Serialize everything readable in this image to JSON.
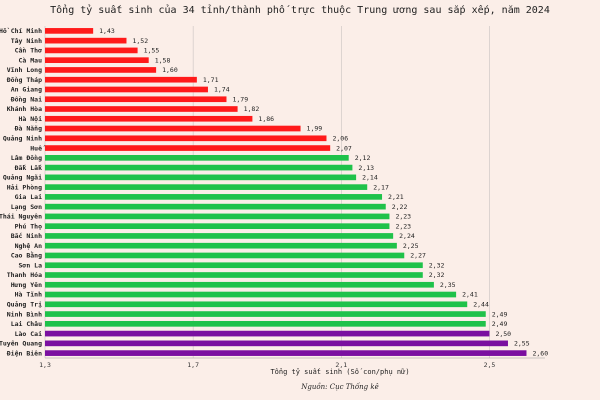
{
  "chart_data": {
    "type": "bar",
    "orientation": "horizontal",
    "title": "Tổng tỷ suất sinh của 34 tỉnh/thành phố trực thuộc Trung ương sau sắp xếp, năm 2024",
    "xlabel": "Tổng tỷ suất sinh (Số con/phụ nữ)",
    "source": "Nguồn: Cục Thống kê",
    "xlim": [
      1.3,
      2.65
    ],
    "xticks": [
      {
        "value": 1.3,
        "label": "1,3"
      },
      {
        "value": 1.7,
        "label": "1,7"
      },
      {
        "value": 2.1,
        "label": "2,1"
      },
      {
        "value": 2.5,
        "label": "2,5"
      }
    ],
    "grid": true,
    "colors": {
      "red": "#ff1a1a",
      "green": "#1fc24a",
      "purple": "#7a0fa0",
      "grid": "#c9c2c0"
    },
    "bars": [
      {
        "category": "Hồ Chí Minh",
        "value": 1.43,
        "label": "1,43",
        "color": "red"
      },
      {
        "category": "Tây Ninh",
        "value": 1.52,
        "label": "1,52",
        "color": "red"
      },
      {
        "category": "Cần Thơ",
        "value": 1.55,
        "label": "1,55",
        "color": "red"
      },
      {
        "category": "Cà Mau",
        "value": 1.58,
        "label": "1,58",
        "color": "red"
      },
      {
        "category": "Vĩnh Long",
        "value": 1.6,
        "label": "1,60",
        "color": "red"
      },
      {
        "category": "Đồng Tháp",
        "value": 1.71,
        "label": "1,71",
        "color": "red"
      },
      {
        "category": "An Giang",
        "value": 1.74,
        "label": "1,74",
        "color": "red"
      },
      {
        "category": "Đồng Nai",
        "value": 1.79,
        "label": "1,79",
        "color": "red"
      },
      {
        "category": "Khánh Hòa",
        "value": 1.82,
        "label": "1,82",
        "color": "red"
      },
      {
        "category": "Hà Nội",
        "value": 1.86,
        "label": "1,86",
        "color": "red"
      },
      {
        "category": "Đà Nẵng",
        "value": 1.99,
        "label": "1,99",
        "color": "red"
      },
      {
        "category": "Quảng Ninh",
        "value": 2.06,
        "label": "2,06",
        "color": "red"
      },
      {
        "category": "Huế",
        "value": 2.07,
        "label": "2,07",
        "color": "red"
      },
      {
        "category": "Lâm Đồng",
        "value": 2.12,
        "label": "2,12",
        "color": "green"
      },
      {
        "category": "Đắk Lắk",
        "value": 2.13,
        "label": "2,13",
        "color": "green"
      },
      {
        "category": "Quảng Ngãi",
        "value": 2.14,
        "label": "2,14",
        "color": "green"
      },
      {
        "category": "Hải Phòng",
        "value": 2.17,
        "label": "2,17",
        "color": "green"
      },
      {
        "category": "Gia Lai",
        "value": 2.21,
        "label": "2,21",
        "color": "green"
      },
      {
        "category": "Lạng Sơn",
        "value": 2.22,
        "label": "2,22",
        "color": "green"
      },
      {
        "category": "Thái Nguyên",
        "value": 2.23,
        "label": "2,23",
        "color": "green"
      },
      {
        "category": "Phú Thọ",
        "value": 2.23,
        "label": "2,23",
        "color": "green"
      },
      {
        "category": "Bắc Ninh",
        "value": 2.24,
        "label": "2,24",
        "color": "green"
      },
      {
        "category": "Nghệ An",
        "value": 2.25,
        "label": "2,25",
        "color": "green"
      },
      {
        "category": "Cao Bằng",
        "value": 2.27,
        "label": "2,27",
        "color": "green"
      },
      {
        "category": "Sơn La",
        "value": 2.32,
        "label": "2,32",
        "color": "green"
      },
      {
        "category": "Thanh Hóa",
        "value": 2.32,
        "label": "2,32",
        "color": "green"
      },
      {
        "category": "Hưng Yên",
        "value": 2.35,
        "label": "2,35",
        "color": "green"
      },
      {
        "category": "Hà Tĩnh",
        "value": 2.41,
        "label": "2,41",
        "color": "green"
      },
      {
        "category": "Quảng Trị",
        "value": 2.44,
        "label": "2,44",
        "color": "green"
      },
      {
        "category": "Ninh Bình",
        "value": 2.49,
        "label": "2,49",
        "color": "green"
      },
      {
        "category": "Lai Châu",
        "value": 2.49,
        "label": "2,49",
        "color": "green"
      },
      {
        "category": "Lào Cai",
        "value": 2.5,
        "label": "2,50",
        "color": "purple"
      },
      {
        "category": "Tuyên Quang",
        "value": 2.55,
        "label": "2,55",
        "color": "purple"
      },
      {
        "category": "Điện Biên",
        "value": 2.6,
        "label": "2,60",
        "color": "purple"
      }
    ]
  }
}
